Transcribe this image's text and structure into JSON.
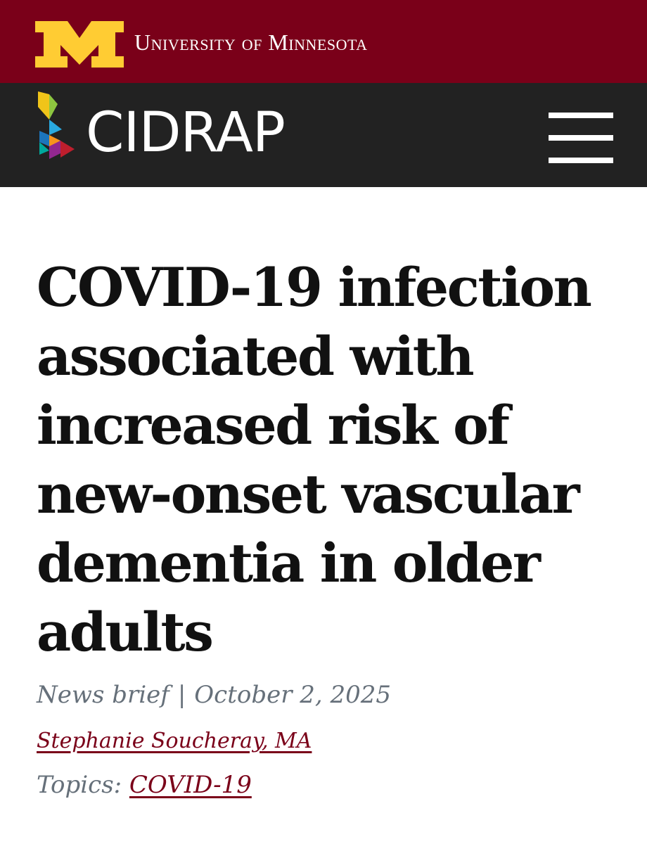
{
  "university_bar": {
    "name": "University of Minnesota",
    "background": "#7a0019",
    "logo_color": "#ffcc33",
    "logo_icon": "block-m-logo"
  },
  "site_header": {
    "brand": "CIDRAP",
    "background": "#222222",
    "logo_icon": "cidrap-tangram-icon",
    "menu_icon": "hamburger-menu-icon"
  },
  "article": {
    "headline": "COVID-19 infection associated with increased risk of new-onset vascular dementia in older adults",
    "type": "News brief",
    "separator": "|",
    "date": "October 2, 2025",
    "author": "Stephanie Soucheray, MA",
    "topics_label": "Topics:",
    "topics": [
      "COVID-19"
    ]
  },
  "colors": {
    "accent": "#7a0019",
    "meta_text": "#66707a",
    "headline_text": "#111111"
  }
}
